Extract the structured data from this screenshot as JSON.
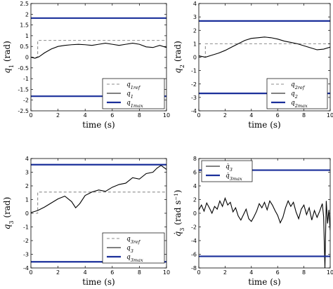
{
  "chart_data": [
    {
      "type": "line",
      "xlabel": "time (s)",
      "ylabel": "q1 (rad)",
      "xlim": [
        0,
        10
      ],
      "ylim": [
        -2.5,
        2.5
      ],
      "xticks": [
        "0",
        "2",
        "4",
        "6",
        "8",
        "10"
      ],
      "yticks": [
        "-2.5",
        "-2",
        "-1.5",
        "-1",
        "-0.5",
        "0",
        "0.5",
        "1",
        "1.5",
        "2",
        "2.5"
      ],
      "legend_position": "bottom-right",
      "series": [
        {
          "name": "q1ref",
          "style": "dashed",
          "color": "#8c8c8c",
          "x": [
            0,
            0.5,
            0.5,
            10
          ],
          "y": [
            0,
            0,
            0.78,
            0.78
          ]
        },
        {
          "name": "q1",
          "style": "solid",
          "color": "#000000",
          "x": [
            0,
            0.3,
            0.6,
            1,
            1.5,
            2,
            2.5,
            3,
            3.5,
            4,
            4.5,
            5,
            5.5,
            6,
            6.5,
            7,
            7.5,
            8,
            8.5,
            9,
            9.5,
            10
          ],
          "y": [
            0,
            -0.05,
            0.02,
            0.2,
            0.38,
            0.5,
            0.55,
            0.58,
            0.6,
            0.58,
            0.55,
            0.6,
            0.65,
            0.6,
            0.55,
            0.6,
            0.65,
            0.6,
            0.48,
            0.45,
            0.55,
            0.45
          ]
        },
        {
          "name": "q1max",
          "style": "solid",
          "color": "#1a2f9a",
          "x": [
            0,
            10
          ],
          "y": [
            1.82,
            1.82
          ]
        },
        {
          "name": "",
          "style": "solid",
          "color": "#1a2f9a",
          "x": [
            0,
            10
          ],
          "y": [
            -1.82,
            -1.82
          ]
        }
      ]
    },
    {
      "type": "line",
      "xlabel": "time (s)",
      "ylabel": "q2 (rad)",
      "xlim": [
        0,
        10
      ],
      "ylim": [
        -4,
        4
      ],
      "xticks": [
        "0",
        "2",
        "4",
        "6",
        "8",
        "10"
      ],
      "yticks": [
        "-4",
        "-3",
        "-2",
        "-1",
        "0",
        "1",
        "2",
        "3",
        "4"
      ],
      "legend_position": "bottom-right",
      "series": [
        {
          "name": "q2ref",
          "style": "dashed",
          "color": "#8c8c8c",
          "x": [
            0,
            0.5,
            0.5,
            10
          ],
          "y": [
            0,
            0,
            1.0,
            1.0
          ]
        },
        {
          "name": "q2",
          "style": "solid",
          "color": "#000000",
          "x": [
            0,
            0.5,
            1,
            1.5,
            2,
            2.5,
            3,
            3.5,
            4,
            4.5,
            5,
            5.5,
            6,
            6.5,
            7,
            7.5,
            8,
            8.5,
            9,
            9.5,
            10
          ],
          "y": [
            0.1,
            0.0,
            0.15,
            0.3,
            0.5,
            0.75,
            1.0,
            1.25,
            1.4,
            1.45,
            1.5,
            1.45,
            1.35,
            1.2,
            1.1,
            1.0,
            0.85,
            0.7,
            0.55,
            0.6,
            0.75
          ]
        },
        {
          "name": "q2max",
          "style": "solid",
          "color": "#1a2f9a",
          "x": [
            0,
            10
          ],
          "y": [
            2.7,
            2.7
          ]
        },
        {
          "name": "",
          "style": "solid",
          "color": "#1a2f9a",
          "x": [
            0,
            10
          ],
          "y": [
            -2.7,
            -2.7
          ]
        }
      ]
    },
    {
      "type": "line",
      "xlabel": "time (s)",
      "ylabel": "q3 (rad)",
      "xlim": [
        0,
        10
      ],
      "ylim": [
        -4,
        4
      ],
      "xticks": [
        "0",
        "2",
        "4",
        "6",
        "8",
        "10"
      ],
      "yticks": [
        "-4",
        "-3",
        "-2",
        "-1",
        "0",
        "1",
        "2",
        "3",
        "4"
      ],
      "legend_position": "bottom-right",
      "series": [
        {
          "name": "q3ref",
          "style": "dashed",
          "color": "#8c8c8c",
          "x": [
            0,
            0.5,
            0.5,
            10
          ],
          "y": [
            0,
            0,
            1.55,
            1.55
          ]
        },
        {
          "name": "q3",
          "style": "solid",
          "color": "#000000",
          "x": [
            0,
            0.5,
            1,
            1.5,
            2,
            2.5,
            3,
            3.3,
            3.6,
            4,
            4.5,
            5,
            5.5,
            6,
            6.5,
            7,
            7.5,
            8,
            8.5,
            9,
            9.3,
            9.6,
            10
          ],
          "y": [
            0.05,
            0.2,
            0.45,
            0.75,
            1.05,
            1.25,
            0.85,
            0.4,
            0.7,
            1.3,
            1.55,
            1.7,
            1.6,
            1.9,
            2.1,
            2.2,
            2.6,
            2.5,
            2.9,
            3.0,
            3.3,
            3.5,
            3.2
          ]
        },
        {
          "name": "q3max",
          "style": "solid",
          "color": "#1a2f9a",
          "x": [
            0,
            10
          ],
          "y": [
            3.55,
            3.55
          ]
        },
        {
          "name": "",
          "style": "solid",
          "color": "#1a2f9a",
          "x": [
            0,
            10
          ],
          "y": [
            -3.55,
            -3.55
          ]
        }
      ]
    },
    {
      "type": "line",
      "xlabel": "time (s)",
      "ylabel": "q̇3 (rad s⁻¹)",
      "xlim": [
        0,
        10
      ],
      "ylim": [
        -8,
        8
      ],
      "xticks": [
        "0",
        "2",
        "4",
        "6",
        "8",
        "10"
      ],
      "yticks": [
        "-8",
        "-6",
        "-4",
        "-2",
        "0",
        "2",
        "4",
        "6",
        "8"
      ],
      "legend_position": "top-left",
      "series": [
        {
          "name": "q̇3",
          "style": "solid",
          "color": "#000000",
          "x": [
            0,
            0.2,
            0.4,
            0.6,
            0.8,
            1,
            1.2,
            1.4,
            1.6,
            1.8,
            2,
            2.2,
            2.4,
            2.6,
            2.8,
            3,
            3.2,
            3.4,
            3.6,
            3.8,
            4,
            4.2,
            4.4,
            4.6,
            4.8,
            5,
            5.2,
            5.4,
            5.6,
            5.8,
            6,
            6.2,
            6.4,
            6.6,
            6.8,
            7,
            7.2,
            7.4,
            7.6,
            7.8,
            8,
            8.2,
            8.4,
            8.6,
            8.8,
            9,
            9.2,
            9.4,
            9.5,
            9.6,
            9.7,
            9.8,
            9.9,
            10
          ],
          "y": [
            0.5,
            1.2,
            0.3,
            1.5,
            0.8,
            0.0,
            1.0,
            0.6,
            1.8,
            1.0,
            2.2,
            1.2,
            1.6,
            0.2,
            0.8,
            -0.4,
            -1.0,
            -0.2,
            0.6,
            -0.8,
            -1.2,
            -0.5,
            0.3,
            1.4,
            0.8,
            1.6,
            0.5,
            1.8,
            1.2,
            0.4,
            -0.3,
            -1.4,
            -0.6,
            0.8,
            1.8,
            1.0,
            1.6,
            0.2,
            -0.8,
            0.6,
            1.2,
            -0.2,
            0.8,
            -1.0,
            0.4,
            -0.6,
            0.3,
            1.4,
            -0.5,
            -8.0,
            1.8,
            -1.5,
            0.5,
            -2.5
          ]
        },
        {
          "name": "q̇3max",
          "style": "solid",
          "color": "#1a2f9a",
          "x": [
            0,
            10
          ],
          "y": [
            6.3,
            6.3
          ]
        },
        {
          "name": "",
          "style": "solid",
          "color": "#1a2f9a",
          "x": [
            0,
            10
          ],
          "y": [
            -6.3,
            -6.3
          ]
        }
      ]
    }
  ],
  "legends": [
    [
      {
        "base": "q",
        "sub": "1ref"
      },
      {
        "base": "q",
        "sub": "1"
      },
      {
        "base": "q",
        "sub": "1max"
      }
    ],
    [
      {
        "base": "q",
        "sub": "2ref"
      },
      {
        "base": "q",
        "sub": "2"
      },
      {
        "base": "q",
        "sub": "2max"
      }
    ],
    [
      {
        "base": "q",
        "sub": "3ref"
      },
      {
        "base": "q",
        "sub": "3"
      },
      {
        "base": "q",
        "sub": "3max"
      }
    ],
    [
      {
        "base": "q̇",
        "sub": "3"
      },
      {
        "base": "q̇",
        "sub": "3max"
      }
    ]
  ]
}
